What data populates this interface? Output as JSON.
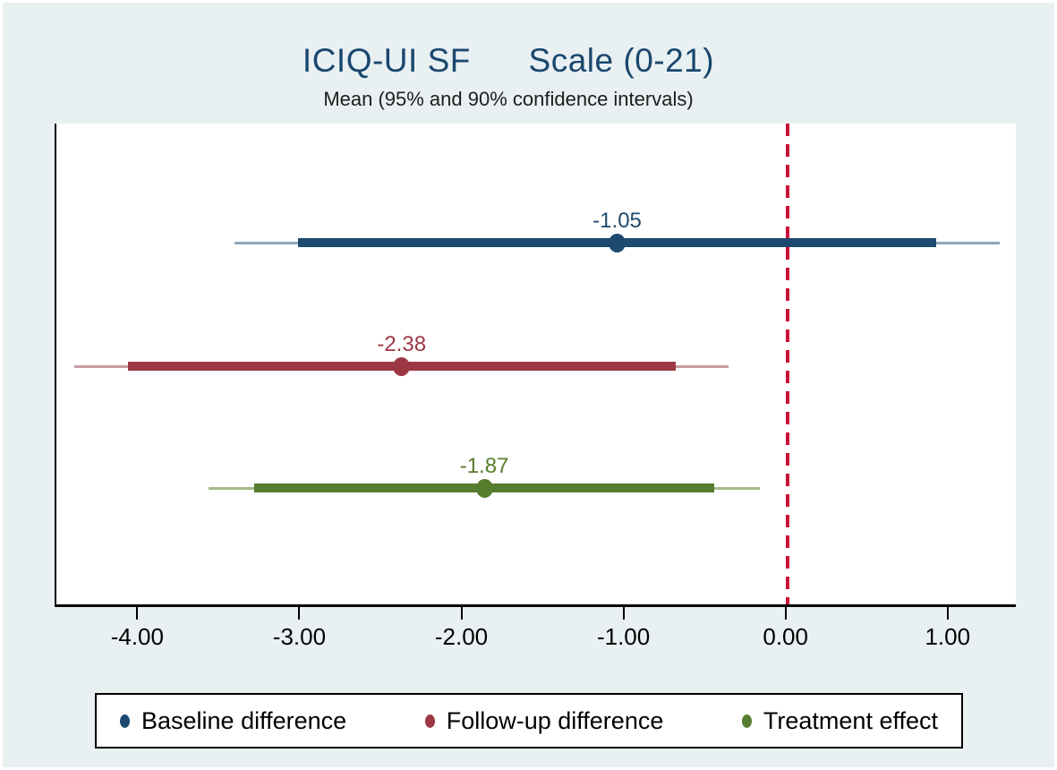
{
  "header": {
    "title": "ICIQ-UI SF      Scale (0-21)",
    "subtitle": "Mean (95% and 90% confidence intervals)"
  },
  "colors": {
    "background": "#e9f0f2",
    "plot_background": "#ffffff",
    "title": "#1a476f",
    "reference_line": "#cb1236",
    "axis": "#000000"
  },
  "chart_data": {
    "type": "forest",
    "title": "ICIQ-UI SF      Scale (0-21)",
    "subtitle": "Mean (95% and 90% confidence intervals)",
    "xlim": [
      -4.51,
      1.41
    ],
    "x_ticks": [
      -4,
      -3,
      -2,
      -1,
      0,
      1
    ],
    "x_tick_labels": [
      "-4.00",
      "-3.00",
      "-2.00",
      "-1.00",
      "0.00",
      "1.00"
    ],
    "reference_line_x": 0,
    "grid": false,
    "legend_position": "bottom",
    "series": [
      {
        "name": "Baseline difference",
        "mean": -1.05,
        "mean_label": "-1.05",
        "ci95": [
          -3.41,
          1.31
        ],
        "ci90": [
          -3.02,
          0.92
        ],
        "color": "#1d4a6e",
        "color_light": "#8ea6b9"
      },
      {
        "name": "Follow-up difference",
        "mean": -2.38,
        "mean_label": "-2.38",
        "ci95": [
          -4.4,
          -0.36
        ],
        "ci90": [
          -4.07,
          -0.69
        ],
        "color": "#9b3844",
        "color_light": "#c79aa1"
      },
      {
        "name": "Treatment effect",
        "mean": -1.87,
        "mean_label": "-1.87",
        "ci95": [
          -3.57,
          -0.17
        ],
        "ci90": [
          -3.29,
          -0.45
        ],
        "color": "#567c2e",
        "color_light": "#a3bc84"
      }
    ],
    "legend": [
      "Baseline difference",
      "Follow-up difference",
      "Treatment effect"
    ]
  }
}
